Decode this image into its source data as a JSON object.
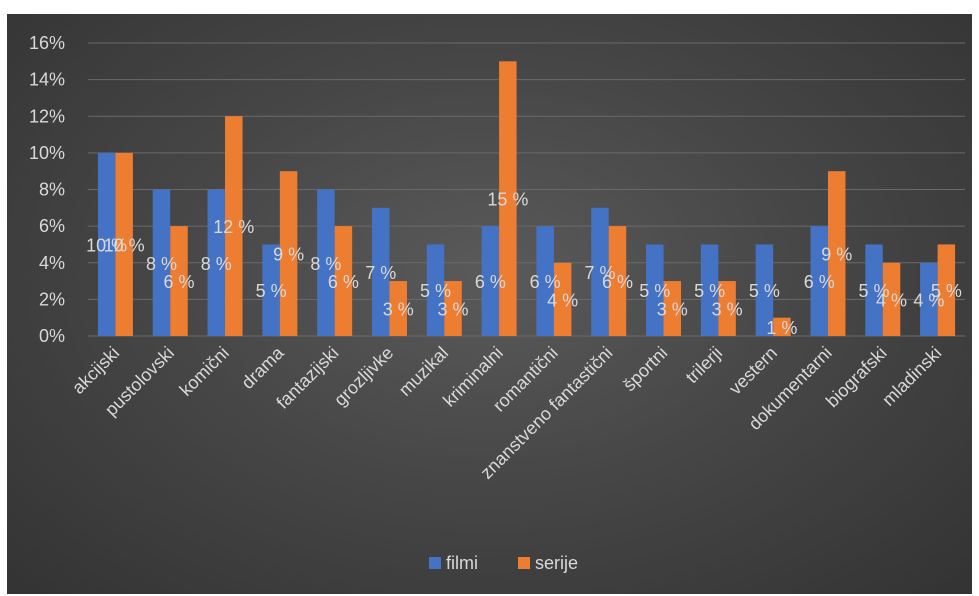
{
  "chart_data": {
    "type": "bar",
    "categories": [
      "akcijski",
      "pustolovski",
      "komični",
      "drama",
      "fantazijski",
      "grozljivke",
      "muzikal",
      "kriminalni",
      "romantični",
      "znanstveno fantastični",
      "športni",
      "trilerji",
      "vestern",
      "dokumentarni",
      "biografski",
      "mladinski"
    ],
    "series": [
      {
        "name": "filmi",
        "color": "#4472c4",
        "values": [
          10,
          8,
          8,
          5,
          8,
          7,
          5,
          6,
          6,
          7,
          5,
          5,
          5,
          6,
          5,
          4
        ]
      },
      {
        "name": "serije",
        "color": "#ed7d31",
        "values": [
          10,
          6,
          12,
          9,
          6,
          3,
          3,
          15,
          4,
          6,
          3,
          3,
          1,
          9,
          4,
          5
        ]
      }
    ],
    "data_label_suffix": " %",
    "ylim": [
      0,
      16
    ],
    "yticks": [
      "0%",
      "2%",
      "4%",
      "6%",
      "8%",
      "10%",
      "12%",
      "14%",
      "16%"
    ],
    "grid": true,
    "legend": "bottom",
    "title": "",
    "xlabel": "",
    "ylabel": ""
  }
}
